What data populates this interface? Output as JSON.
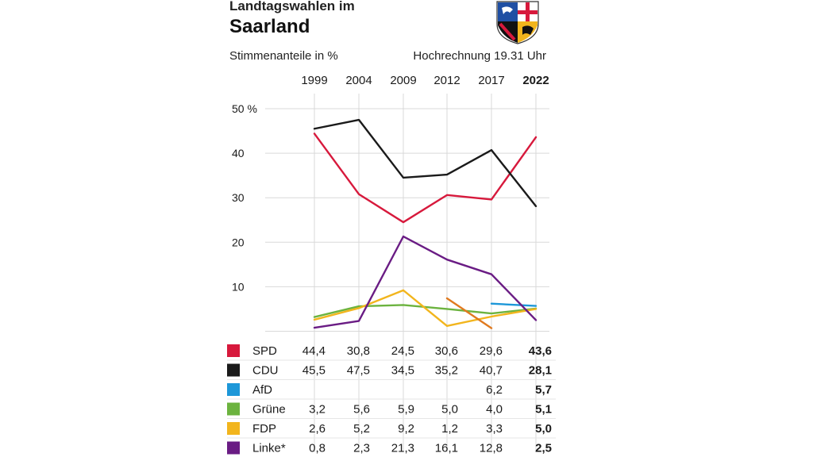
{
  "header": {
    "title_line1": "Landtagswahlen im",
    "title_line2": "Saarland",
    "subtitle": "Stimmenanteile in %",
    "forecast": "Hochrechnung 19.31 Uhr"
  },
  "chart_data": {
    "type": "line",
    "categories": [
      "1999",
      "2004",
      "2009",
      "2012",
      "2017",
      "2022"
    ],
    "highlight_category": "2022",
    "y_ticks": [
      "50 %",
      "40",
      "30",
      "20",
      "10"
    ],
    "y_tick_values": [
      50,
      40,
      30,
      20,
      10
    ],
    "ylim": [
      0,
      50
    ],
    "grid": true,
    "series": [
      {
        "name": "SPD",
        "color": "#d7193c",
        "values": [
          44.4,
          30.8,
          24.5,
          30.6,
          29.6,
          43.6
        ],
        "labels": [
          "44,4",
          "30,8",
          "24,5",
          "30,6",
          "29,6",
          "43,6"
        ]
      },
      {
        "name": "CDU",
        "color": "#1a1a1a",
        "values": [
          45.5,
          47.5,
          34.5,
          35.2,
          40.7,
          28.1
        ],
        "labels": [
          "45,5",
          "47,5",
          "34,5",
          "35,2",
          "40,7",
          "28,1"
        ]
      },
      {
        "name": "AfD",
        "color": "#1d97d8",
        "values": [
          null,
          null,
          null,
          null,
          6.2,
          5.7
        ],
        "labels": [
          "",
          "",
          "",
          "",
          "6,2",
          "5,7"
        ]
      },
      {
        "name": "Grüne",
        "color": "#6cb33f",
        "values": [
          3.2,
          5.6,
          5.9,
          5.0,
          4.0,
          5.1
        ],
        "labels": [
          "3,2",
          "5,6",
          "5,9",
          "5,0",
          "4,0",
          "5,1"
        ]
      },
      {
        "name": "FDP",
        "color": "#f2b51d",
        "values": [
          2.6,
          5.2,
          9.2,
          1.2,
          3.3,
          5.0
        ],
        "labels": [
          "2,6",
          "5,2",
          "9,2",
          "1,2",
          "3,3",
          "5,0"
        ]
      },
      {
        "name": "Linke*",
        "color": "#6a1c84",
        "values": [
          0.8,
          2.3,
          21.3,
          16.1,
          12.8,
          2.5
        ],
        "labels": [
          "0,8",
          "2,3",
          "21,3",
          "16,1",
          "12,8",
          "2,5"
        ]
      }
    ],
    "extra_line": {
      "color": "#e07a1f",
      "values": [
        null,
        null,
        null,
        7.4,
        0.7,
        null
      ]
    }
  }
}
